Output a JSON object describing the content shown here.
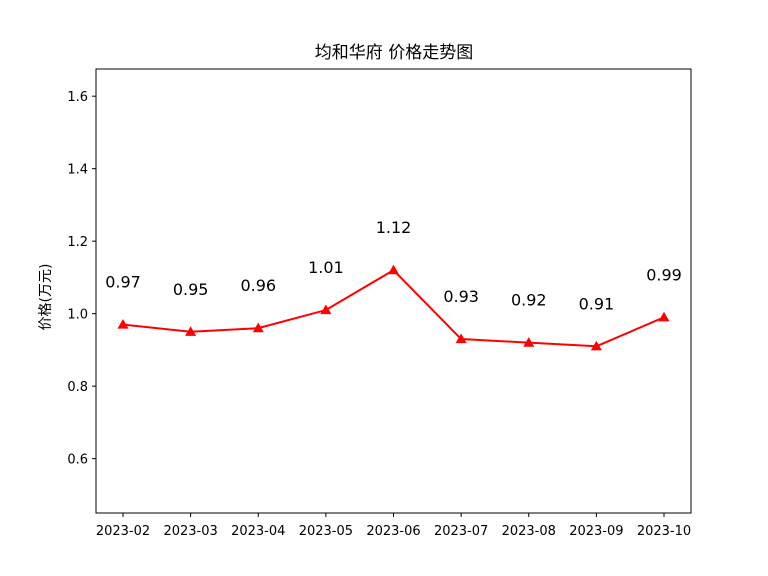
{
  "chart_data": {
    "type": "line",
    "title": "均和华府 价格走势图",
    "xlabel": "",
    "ylabel": "价格(万元)",
    "categories": [
      "2023-02",
      "2023-03",
      "2023-04",
      "2023-05",
      "2023-06",
      "2023-07",
      "2023-08",
      "2023-09",
      "2023-10"
    ],
    "series": [
      {
        "name": "",
        "values": [
          0.97,
          0.95,
          0.96,
          1.01,
          1.12,
          0.93,
          0.92,
          0.91,
          0.99
        ],
        "labels": [
          "0.97",
          "0.95",
          "0.96",
          "1.01",
          "1.12",
          "0.93",
          "0.92",
          "0.91",
          "0.99"
        ],
        "color": "#ff0000",
        "marker": "triangle"
      }
    ],
    "ylim": [
      0.45,
      1.675
    ],
    "yticks": [
      0.6,
      0.8,
      1.0,
      1.2,
      1.4,
      1.6
    ],
    "ytick_labels": [
      "0.6",
      "0.8",
      "1.0",
      "1.2",
      "1.4",
      "1.6"
    ],
    "grid": false,
    "legend": "none"
  }
}
